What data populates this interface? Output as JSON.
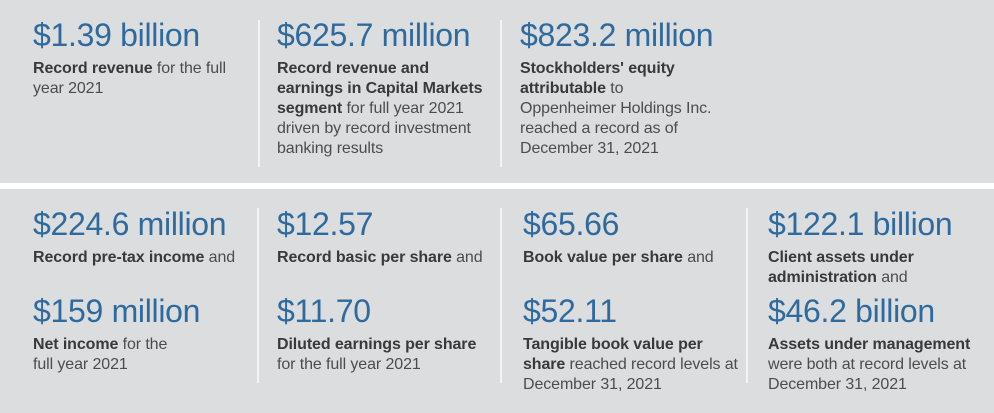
{
  "colors": {
    "background": "#dcddde",
    "gap": "#ffffff",
    "divider": "#f3f4f5",
    "accent": "#2f6a9f",
    "bold_text": "#39393b",
    "body_text": "#4c4c4f"
  },
  "top_row": {
    "items": [
      {
        "value": "$1.39 billion",
        "desc_bold": "Record revenue",
        "desc_rest": " for the full\nyear 2021"
      },
      {
        "value": "$625.7 million",
        "desc_bold": "Record revenue and\nearnings in Capital Markets\nsegment",
        "desc_rest": " for full year 2021\ndriven by record investment\nbanking results"
      },
      {
        "value": "$823.2 million",
        "desc_bold": "Stockholders' equity\nattributable",
        "desc_rest": " to\nOppenheimer Holdings Inc.\nreached a record as of\nDecember 31, 2021"
      }
    ]
  },
  "bottom_row": {
    "items": [
      {
        "value_1": "$224.6 million",
        "desc_1_bold": "Record pre-tax income",
        "desc_1_rest": " and",
        "value_2": "$159 million",
        "desc_2_bold": "Net income",
        "desc_2_rest": " for the\nfull year 2021"
      },
      {
        "value_1": "$12.57",
        "desc_1_bold": "Record basic per share",
        "desc_1_rest": " and",
        "value_2": "$11.70",
        "desc_2_bold": "Diluted earnings per share",
        "desc_2_rest": "\nfor the full year 2021"
      },
      {
        "value_1": "$65.66",
        "desc_1_bold": "Book value per share",
        "desc_1_rest": " and",
        "value_2": "$52.11",
        "desc_2_bold": "Tangible book value per\nshare",
        "desc_2_rest": " reached record levels at\nDecember 31, 2021"
      },
      {
        "value_1": "$122.1 billion",
        "desc_1_bold": "Client assets under\nadministration",
        "desc_1_rest": " and",
        "value_2": "$46.2 billion",
        "desc_2_bold": "Assets under management",
        "desc_2_rest": "\nwere both at record levels at\nDecember 31, 2021"
      }
    ]
  }
}
